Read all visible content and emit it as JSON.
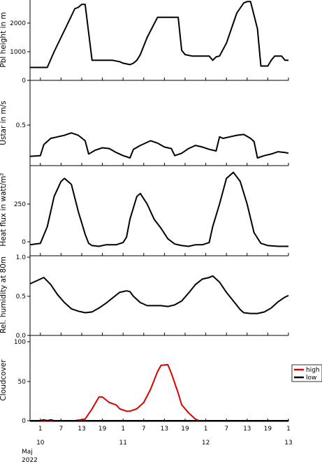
{
  "x_axis": {
    "day_ticks": [
      "10",
      "11",
      "12",
      "13"
    ],
    "hour_ticks": [
      "1",
      "7",
      "13",
      "19",
      "1",
      "7",
      "13",
      "19",
      "1",
      "7",
      "13",
      "19",
      "1"
    ],
    "month_label": "Maj",
    "year_label": "2022"
  },
  "legend": {
    "high_label": "high",
    "low_label": "low"
  },
  "chart_data": [
    {
      "type": "line",
      "ylabel": "Pbl height in m",
      "yticks": [
        "0",
        "1000",
        "2000"
      ],
      "ylim": [
        0,
        2800
      ],
      "grid": false,
      "series": [
        {
          "name": "",
          "color": "#000000",
          "points": [
            [
              0,
              450
            ],
            [
              5,
              450
            ],
            [
              7,
              1000
            ],
            [
              9,
              1500
            ],
            [
              11,
              2000
            ],
            [
              13,
              2500
            ],
            [
              14,
              2550
            ],
            [
              15,
              2650
            ],
            [
              16,
              2650
            ],
            [
              18,
              700
            ],
            [
              24,
              700
            ],
            [
              26,
              650
            ],
            [
              27,
              600
            ],
            [
              29,
              550
            ],
            [
              30,
              600
            ],
            [
              31,
              700
            ],
            [
              32,
              900
            ],
            [
              34,
              1500
            ],
            [
              37,
              2200
            ],
            [
              43,
              2200
            ],
            [
              44,
              1050
            ],
            [
              45,
              900
            ],
            [
              47,
              850
            ],
            [
              48,
              850
            ],
            [
              52,
              850
            ],
            [
              53,
              700
            ],
            [
              54,
              820
            ],
            [
              55,
              850
            ],
            [
              57,
              1300
            ],
            [
              59,
              2000
            ],
            [
              60,
              2350
            ],
            [
              62,
              2700
            ],
            [
              63,
              2750
            ],
            [
              64,
              2750
            ],
            [
              66,
              1800
            ],
            [
              67,
              500
            ],
            [
              69,
              500
            ],
            [
              70,
              700
            ],
            [
              71,
              850
            ],
            [
              73,
              850
            ],
            [
              74,
              700
            ],
            [
              75,
              700
            ]
          ]
        }
      ]
    },
    {
      "type": "line",
      "ylabel": "Ustar in m/s",
      "yticks": [
        "0.5"
      ],
      "ylim": [
        0,
        1.0
      ],
      "grid": false,
      "series": [
        {
          "name": "",
          "color": "#000000",
          "points": [
            [
              0,
              0.1
            ],
            [
              3,
              0.11
            ],
            [
              4,
              0.25
            ],
            [
              6,
              0.33
            ],
            [
              8,
              0.35
            ],
            [
              10,
              0.37
            ],
            [
              12,
              0.4
            ],
            [
              14,
              0.37
            ],
            [
              16,
              0.3
            ],
            [
              17,
              0.13
            ],
            [
              19,
              0.18
            ],
            [
              21,
              0.21
            ],
            [
              23,
              0.2
            ],
            [
              25,
              0.15
            ],
            [
              27,
              0.11
            ],
            [
              29,
              0.08
            ],
            [
              30,
              0.19
            ],
            [
              32,
              0.24
            ],
            [
              35,
              0.3
            ],
            [
              37,
              0.27
            ],
            [
              39,
              0.22
            ],
            [
              41,
              0.2
            ],
            [
              42,
              0.11
            ],
            [
              44,
              0.14
            ],
            [
              46,
              0.2
            ],
            [
              48,
              0.24
            ],
            [
              50,
              0.22
            ],
            [
              52,
              0.19
            ],
            [
              54,
              0.17
            ],
            [
              55,
              0.35
            ],
            [
              56,
              0.33
            ],
            [
              58,
              0.35
            ],
            [
              60,
              0.37
            ],
            [
              62,
              0.38
            ],
            [
              64,
              0.33
            ],
            [
              65,
              0.29
            ],
            [
              66,
              0.08
            ],
            [
              68,
              0.11
            ],
            [
              70,
              0.13
            ],
            [
              72,
              0.16
            ],
            [
              74,
              0.15
            ],
            [
              75,
              0.14
            ]
          ]
        }
      ]
    },
    {
      "type": "line",
      "ylabel": "Heat flux in watt/m²",
      "yticks": [
        "0",
        "250"
      ],
      "ylim": [
        -25,
        475
      ],
      "grid": false,
      "series": [
        {
          "name": "",
          "color": "#000000",
          "points": [
            [
              0,
              -20
            ],
            [
              3,
              -10
            ],
            [
              5,
              100
            ],
            [
              7,
              300
            ],
            [
              9,
              400
            ],
            [
              10,
              420
            ],
            [
              12,
              380
            ],
            [
              14,
              200
            ],
            [
              16,
              50
            ],
            [
              17,
              -10
            ],
            [
              18,
              -25
            ],
            [
              20,
              -30
            ],
            [
              22,
              -20
            ],
            [
              25,
              -20
            ],
            [
              27,
              -5
            ],
            [
              28,
              30
            ],
            [
              29,
              150
            ],
            [
              31,
              300
            ],
            [
              32,
              320
            ],
            [
              34,
              250
            ],
            [
              36,
              150
            ],
            [
              38,
              90
            ],
            [
              40,
              20
            ],
            [
              42,
              -15
            ],
            [
              44,
              -25
            ],
            [
              46,
              -30
            ],
            [
              48,
              -20
            ],
            [
              50,
              -20
            ],
            [
              52,
              -5
            ],
            [
              53,
              100
            ],
            [
              55,
              250
            ],
            [
              57,
              420
            ],
            [
              59,
              460
            ],
            [
              61,
              400
            ],
            [
              63,
              250
            ],
            [
              65,
              60
            ],
            [
              67,
              -10
            ],
            [
              69,
              -25
            ],
            [
              72,
              -30
            ],
            [
              75,
              -30
            ]
          ]
        }
      ]
    },
    {
      "type": "line",
      "ylabel": "Rel. humidity at 80m",
      "yticks": [
        "0.0",
        "0.5",
        "1.0"
      ],
      "ylim": [
        0,
        1.0
      ],
      "grid": false,
      "series": [
        {
          "name": "",
          "color": "#000000",
          "points": [
            [
              0,
              0.66
            ],
            [
              2,
              0.7
            ],
            [
              4,
              0.74
            ],
            [
              6,
              0.65
            ],
            [
              8,
              0.52
            ],
            [
              10,
              0.42
            ],
            [
              12,
              0.34
            ],
            [
              14,
              0.31
            ],
            [
              16,
              0.29
            ],
            [
              18,
              0.3
            ],
            [
              20,
              0.35
            ],
            [
              22,
              0.41
            ],
            [
              24,
              0.48
            ],
            [
              26,
              0.55
            ],
            [
              28,
              0.57
            ],
            [
              29,
              0.56
            ],
            [
              30,
              0.5
            ],
            [
              32,
              0.42
            ],
            [
              34,
              0.38
            ],
            [
              36,
              0.38
            ],
            [
              38,
              0.38
            ],
            [
              40,
              0.37
            ],
            [
              42,
              0.39
            ],
            [
              44,
              0.44
            ],
            [
              46,
              0.54
            ],
            [
              48,
              0.65
            ],
            [
              50,
              0.72
            ],
            [
              52,
              0.74
            ],
            [
              53,
              0.76
            ],
            [
              55,
              0.68
            ],
            [
              57,
              0.55
            ],
            [
              59,
              0.44
            ],
            [
              61,
              0.33
            ],
            [
              62,
              0.29
            ],
            [
              64,
              0.28
            ],
            [
              66,
              0.28
            ],
            [
              68,
              0.3
            ],
            [
              70,
              0.35
            ],
            [
              72,
              0.43
            ],
            [
              74,
              0.49
            ],
            [
              75,
              0.51
            ]
          ]
        }
      ]
    },
    {
      "type": "line",
      "ylabel": "Cloudcover",
      "yticks": [
        "0",
        "50",
        "100"
      ],
      "ylim": [
        0,
        100
      ],
      "grid": false,
      "legend": "right",
      "series": [
        {
          "name": "high",
          "color": "#dd0000",
          "points": [
            [
              0,
              0
            ],
            [
              13,
              0
            ],
            [
              16,
              2
            ],
            [
              18,
              15
            ],
            [
              20,
              30
            ],
            [
              21,
              30
            ],
            [
              23,
              23
            ],
            [
              25,
              20
            ],
            [
              26,
              15
            ],
            [
              28,
              12
            ],
            [
              29,
              12
            ],
            [
              31,
              15
            ],
            [
              33,
              23
            ],
            [
              35,
              40
            ],
            [
              37,
              62
            ],
            [
              38,
              70
            ],
            [
              40,
              71
            ],
            [
              41,
              60
            ],
            [
              43,
              35
            ],
            [
              44,
              20
            ],
            [
              46,
              10
            ],
            [
              48,
              2
            ],
            [
              49,
              0
            ],
            [
              75,
              0
            ]
          ]
        },
        {
          "name": "low",
          "color": "#000000",
          "points": [
            [
              0,
              0
            ],
            [
              3,
              0
            ],
            [
              4,
              1
            ],
            [
              5,
              0
            ],
            [
              6,
              1
            ],
            [
              7,
              0
            ],
            [
              75,
              0
            ]
          ]
        }
      ]
    }
  ]
}
